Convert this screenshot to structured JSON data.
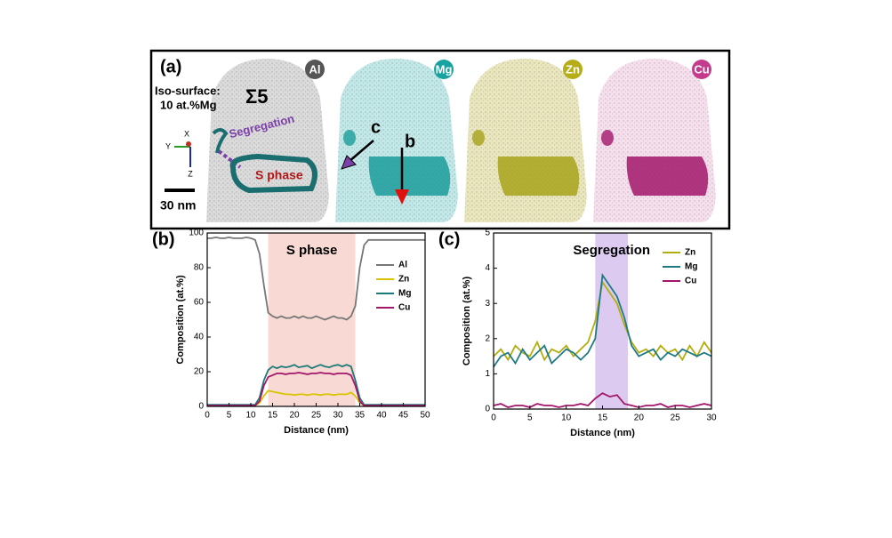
{
  "panel_a": {
    "label": "(a)",
    "elements": [
      "Al",
      "Mg",
      "Zn",
      "Cu"
    ],
    "iso_line1": "Iso-surface:",
    "iso_line2": "10 at.%Mg",
    "boundary": "Σ5",
    "segregation": "Segregation",
    "s_phase": "S phase",
    "arrow_c": "c",
    "arrow_b": "b",
    "scale": "30 nm",
    "axes": [
      "X",
      "Y",
      "Z"
    ]
  },
  "chart_data": [
    {
      "type": "line",
      "panel": "(b)",
      "annotation": "S phase",
      "highlight": {
        "range": [
          14,
          34
        ],
        "color": "#f9d9d4"
      },
      "xlabel": "Distance (nm)",
      "ylabel": "Composition (at.%)",
      "xlim": [
        0,
        50
      ],
      "ylim": [
        0,
        100
      ],
      "xticks": [
        0,
        5,
        10,
        15,
        20,
        25,
        30,
        35,
        40,
        45,
        50
      ],
      "yticks": [
        0,
        20,
        40,
        60,
        80,
        100
      ],
      "legend": "center right",
      "x": [
        0,
        1,
        2,
        3,
        4,
        5,
        6,
        7,
        8,
        9,
        10,
        11,
        12,
        13,
        14,
        15,
        16,
        17,
        18,
        19,
        20,
        21,
        22,
        23,
        24,
        25,
        26,
        27,
        28,
        29,
        30,
        31,
        32,
        33,
        34,
        35,
        36,
        37,
        38,
        39,
        40,
        41,
        42,
        43,
        44,
        45,
        46,
        47,
        48,
        49,
        50
      ],
      "series": [
        {
          "name": "Al",
          "color": "#777777",
          "values": [
            97,
            97,
            97.5,
            97,
            97,
            97.5,
            97,
            97,
            97,
            97.5,
            97,
            96,
            88,
            70,
            54,
            52,
            51,
            52,
            51,
            51,
            52,
            51,
            52,
            51,
            51,
            52,
            51,
            50,
            51,
            52,
            51,
            51,
            50,
            52,
            58,
            80,
            93,
            96,
            96,
            96,
            96,
            96,
            96,
            96,
            96,
            96,
            96,
            96,
            96,
            96,
            96
          ]
        },
        {
          "name": "Zn",
          "color": "#d9c400",
          "values": [
            0.5,
            0.5,
            0.5,
            0.5,
            0.5,
            0.5,
            0.5,
            0.5,
            0.5,
            0.5,
            0.5,
            0.5,
            2,
            6,
            9,
            8.5,
            8,
            7.5,
            7,
            7,
            6.5,
            7,
            7,
            6.5,
            7,
            7,
            6.5,
            7,
            7,
            6.5,
            7,
            7,
            7,
            8,
            6,
            2,
            0.5,
            0.5,
            0.5,
            0.5,
            0.5,
            0.5,
            0.5,
            0.5,
            0.5,
            0.5,
            0.5,
            0.5,
            0.5,
            0.5,
            0.5
          ]
        },
        {
          "name": "Mg",
          "color": "#1d7a78",
          "values": [
            1,
            1,
            1,
            1,
            1,
            1,
            1,
            1,
            1,
            1,
            1,
            1,
            5,
            15,
            21,
            23,
            22,
            23,
            22.5,
            23,
            24,
            22.5,
            23,
            23.5,
            22,
            23,
            24,
            23,
            22.5,
            23.5,
            24,
            23,
            24,
            23,
            15,
            5,
            1,
            1,
            1,
            1,
            1,
            1,
            1,
            1,
            1,
            1,
            1,
            1,
            1,
            1,
            1
          ]
        },
        {
          "name": "Cu",
          "color": "#a3166b",
          "values": [
            0.5,
            0.5,
            0.5,
            0.5,
            0.5,
            0.5,
            0.5,
            0.5,
            0.5,
            0.5,
            0.5,
            0.5,
            3,
            12,
            17,
            18,
            19,
            19,
            18.5,
            19,
            19,
            19.5,
            19,
            18.5,
            19,
            19,
            19.5,
            19,
            19,
            18.5,
            19,
            19,
            19,
            18,
            12,
            3,
            0.5,
            0.5,
            0.5,
            0.5,
            0.5,
            0.5,
            0.5,
            0.5,
            0.5,
            0.5,
            0.5,
            0.5,
            0.5,
            0.5,
            0.5
          ]
        }
      ]
    },
    {
      "type": "line",
      "panel": "(c)",
      "annotation": "Segregation",
      "highlight": {
        "range": [
          14,
          18.5
        ],
        "color": "#dccaf0"
      },
      "xlabel": "Distance (nm)",
      "ylabel": "Composition (at.%)",
      "xlim": [
        0,
        30
      ],
      "ylim": [
        0,
        5
      ],
      "xticks": [
        0,
        5,
        10,
        15,
        20,
        25,
        30
      ],
      "yticks": [
        0,
        1,
        2,
        3,
        4,
        5
      ],
      "legend": "upper right",
      "x": [
        0,
        1,
        2,
        3,
        4,
        5,
        6,
        7,
        8,
        9,
        10,
        11,
        12,
        13,
        14,
        15,
        16,
        17,
        18,
        19,
        20,
        21,
        22,
        23,
        24,
        25,
        26,
        27,
        28,
        29,
        30
      ],
      "series": [
        {
          "name": "Zn",
          "color": "#b3ae10",
          "values": [
            1.5,
            1.7,
            1.4,
            1.8,
            1.6,
            1.5,
            1.9,
            1.4,
            1.7,
            1.6,
            1.8,
            1.5,
            1.7,
            1.9,
            2.5,
            3.6,
            3.3,
            3.0,
            2.4,
            1.9,
            1.6,
            1.7,
            1.5,
            1.8,
            1.6,
            1.7,
            1.4,
            1.8,
            1.5,
            1.9,
            1.6
          ]
        },
        {
          "name": "Mg",
          "color": "#1f7a86",
          "values": [
            1.2,
            1.5,
            1.6,
            1.3,
            1.7,
            1.4,
            1.6,
            1.8,
            1.3,
            1.5,
            1.7,
            1.6,
            1.4,
            1.6,
            2.0,
            3.8,
            3.5,
            3.2,
            2.6,
            1.8,
            1.5,
            1.6,
            1.7,
            1.4,
            1.6,
            1.5,
            1.7,
            1.6,
            1.5,
            1.6,
            1.5
          ]
        },
        {
          "name": "Cu",
          "color": "#a3166b",
          "values": [
            0.1,
            0.15,
            0.05,
            0.1,
            0.1,
            0.05,
            0.15,
            0.1,
            0.1,
            0.05,
            0.1,
            0.1,
            0.15,
            0.1,
            0.3,
            0.45,
            0.35,
            0.4,
            0.15,
            0.1,
            0.05,
            0.1,
            0.1,
            0.15,
            0.05,
            0.1,
            0.1,
            0.05,
            0.1,
            0.15,
            0.1
          ]
        }
      ]
    }
  ]
}
